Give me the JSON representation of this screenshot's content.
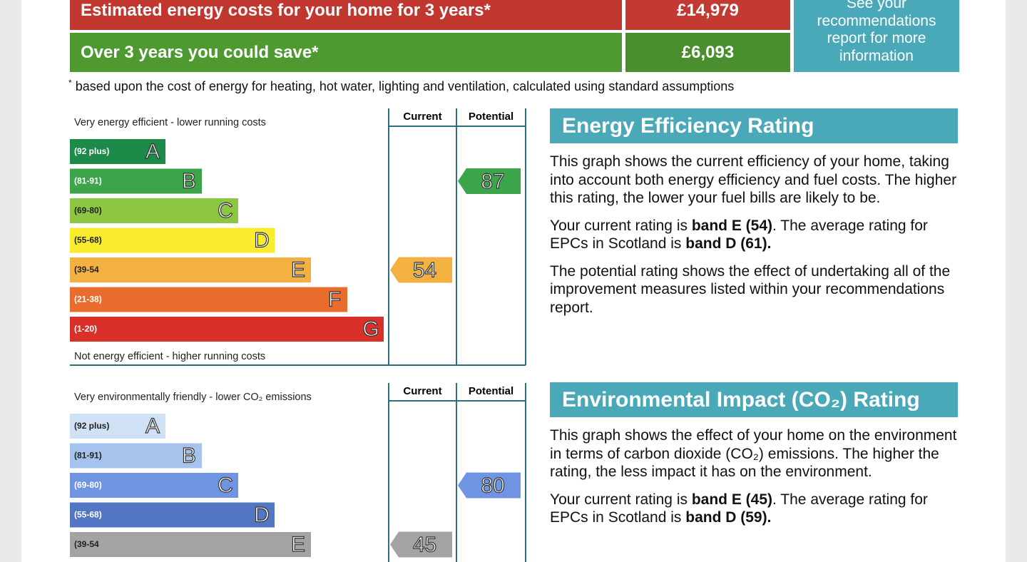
{
  "costs": {
    "rows": [
      {
        "label": "Estimated energy costs for your home for 3 years*",
        "value": "£14,979",
        "color": "#c1362f",
        "value_color": "#c23a31"
      },
      {
        "label": "Over 3 years you could save*",
        "value": "£6,093",
        "color": "#4f9a30",
        "value_color": "#4a8f2d"
      }
    ],
    "link": "See your recommendations report for more information"
  },
  "footnote": {
    "mark": "*",
    "text": "based upon the cost of energy for heating, hot water, lighting and ventilation, calculated using standard assumptions"
  },
  "ratings": [
    {
      "columns": [
        "Current",
        "Potential"
      ],
      "top_label": "Very energy efficient - lower running costs",
      "bottom_label": "Not energy efficient - higher running costs",
      "bands": [
        {
          "range": "(92 plus)",
          "letter": "A",
          "color": "#1d8a4a"
        },
        {
          "range": "(81-91)",
          "letter": "B",
          "color": "#3ca449"
        },
        {
          "range": "(69-80)",
          "letter": "C",
          "color": "#8dc641"
        },
        {
          "range": "(55-68)",
          "letter": "D",
          "color": "#f8ec2c"
        },
        {
          "range": "(39-54",
          "letter": "E",
          "color": "#f2b141"
        },
        {
          "range": "(21-38)",
          "letter": "F",
          "color": "#e86c2b"
        },
        {
          "range": "(1-20)",
          "letter": "G",
          "color": "#d9302a"
        }
      ],
      "current": {
        "value": 54,
        "band": "E"
      },
      "potential": {
        "value": 87,
        "band": "B"
      },
      "heading": "Energy Efficiency Rating",
      "paragraphs": [
        [
          {
            "text": "This graph shows the current efficiency of your home, taking into account both energy efficiency and fuel costs. The higher this rating, the lower your fuel bills are likely to be."
          }
        ],
        [
          {
            "text": "Your current rating is "
          },
          {
            "text": "band E (54)",
            "bold": true
          },
          {
            "text": ". The average rating for EPCs in Scotland is "
          },
          {
            "text": "band D (61).",
            "bold": true
          }
        ],
        [
          {
            "text": "The potential rating shows the effect of undertaking all of the improvement measures listed within your recommendations report."
          }
        ]
      ]
    },
    {
      "columns": [
        "Current",
        "Potential"
      ],
      "top_label": "Very environmentally friendly - lower CO₂ emissions",
      "bands": [
        {
          "range": "(92 plus)",
          "letter": "A",
          "color": "#cfe1f4"
        },
        {
          "range": "(81-91)",
          "letter": "B",
          "color": "#a5c3ec"
        },
        {
          "range": "(69-80)",
          "letter": "C",
          "color": "#6f95e2"
        },
        {
          "range": "(55-68)",
          "letter": "D",
          "color": "#5276c3"
        },
        {
          "range": "(39-54",
          "letter": "E",
          "color": "#a3a3a3"
        }
      ],
      "current": {
        "value": 45,
        "band": "E"
      },
      "potential": {
        "value": 80,
        "band": "C"
      },
      "heading": "Environmental Impact (CO₂) Rating",
      "paragraphs": [
        [
          {
            "text": "This graph shows the effect of your home on the environment in terms of carbon dioxide (CO₂) emissions. The higher the rating, the less impact it has on the environment."
          }
        ],
        [
          {
            "text": "Your current rating is "
          },
          {
            "text": "band E (45)",
            "bold": true
          },
          {
            "text": ". The average rating for EPCs in Scotland is "
          },
          {
            "text": "band D (59).",
            "bold": true
          }
        ]
      ]
    }
  ]
}
